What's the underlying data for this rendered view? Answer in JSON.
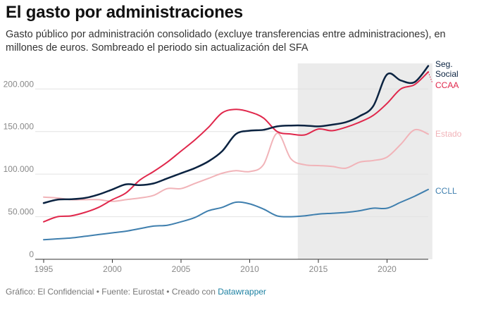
{
  "title": "El gasto por administraciones",
  "subtitle": "Gasto público por administración consolidado (excluye transferencias entre administraciones), en millones de euros. Sombreado el periodo sin actualización del SFA",
  "footer": {
    "prefix": "Gráfico: El Confidencial • Fuente: Eurostat • Creado con ",
    "link": "Datawrapper"
  },
  "colors": {
    "seg_social": "#0b2341",
    "ccaa": "#e0274b",
    "estado": "#f1b3b8",
    "ccll": "#3f7fae",
    "shade": "#ebebeb",
    "grid": "#e2e2e2"
  },
  "chart_data": {
    "type": "line",
    "title": "El gasto por administraciones",
    "xlabel": "",
    "ylabel": "",
    "xlim": [
      1995,
      2023
    ],
    "ylim": [
      0,
      230000
    ],
    "x_ticks": [
      "1995",
      "2000",
      "2005",
      "2010",
      "2015",
      "2020"
    ],
    "y_ticks": [
      "0",
      "50.000",
      "100.000",
      "150.000",
      "200.000"
    ],
    "y_tick_values": [
      0,
      50000,
      100000,
      150000,
      200000
    ],
    "shaded_period": [
      2013.5,
      2023.3
    ],
    "grid": true,
    "x": [
      1995,
      1996,
      1997,
      1998,
      1999,
      2000,
      2001,
      2002,
      2003,
      2004,
      2005,
      2006,
      2007,
      2008,
      2009,
      2010,
      2011,
      2012,
      2013,
      2014,
      2015,
      2016,
      2017,
      2018,
      2019,
      2020,
      2021,
      2022,
      2023
    ],
    "series": [
      {
        "key": "seg_social",
        "name": "Seg. Social",
        "label_lines": [
          "Seg.",
          "Social"
        ],
        "values": [
          66000,
          70000,
          70500,
          72000,
          76000,
          82000,
          88000,
          87000,
          89000,
          95000,
          101000,
          107000,
          115000,
          127000,
          147000,
          151000,
          152000,
          156000,
          157000,
          157000,
          156000,
          158000,
          161000,
          168000,
          180000,
          217000,
          210000,
          208000,
          227000
        ]
      },
      {
        "key": "ccaa",
        "name": "CCAA",
        "label_lines": [
          "CCAA"
        ],
        "values": [
          44000,
          50000,
          51000,
          55000,
          61000,
          70000,
          78000,
          93000,
          103000,
          114000,
          127000,
          140000,
          155000,
          172000,
          176000,
          173000,
          166000,
          150000,
          147000,
          146000,
          153000,
          151000,
          155000,
          161000,
          169000,
          183000,
          200000,
          205000,
          220000
        ]
      },
      {
        "key": "estado",
        "name": "Estado",
        "label_lines": [
          "Estado"
        ],
        "values": [
          73000,
          72000,
          70000,
          70000,
          70000,
          68000,
          70000,
          72000,
          75000,
          83000,
          83000,
          89000,
          95000,
          101000,
          104000,
          103000,
          111000,
          148000,
          118000,
          111000,
          110000,
          109000,
          107000,
          114000,
          116000,
          120000,
          135000,
          152000,
          147000
        ]
      },
      {
        "key": "ccll",
        "name": "CCLL",
        "label_lines": [
          "CCLL"
        ],
        "values": [
          23000,
          24000,
          25000,
          27000,
          29000,
          31000,
          33000,
          36000,
          39000,
          40000,
          44000,
          49000,
          57000,
          61000,
          67000,
          65000,
          59000,
          51000,
          50000,
          51000,
          53000,
          54000,
          55000,
          57000,
          60000,
          60000,
          67000,
          74000,
          82000
        ]
      }
    ]
  }
}
